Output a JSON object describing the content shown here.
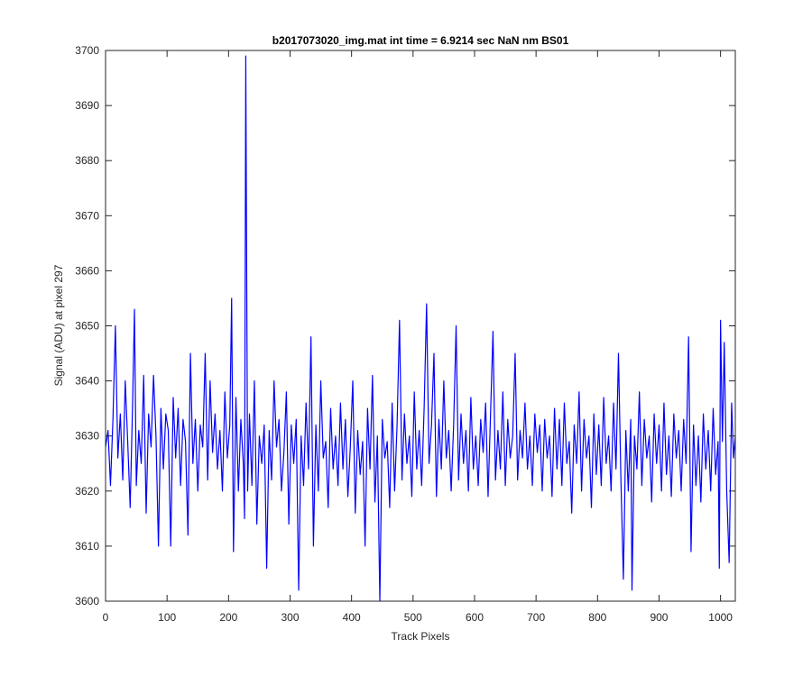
{
  "chart_data": {
    "type": "line",
    "title": "b2017073020_img.mat int time = 6.9214 sec  NaN nm BS01",
    "xlabel": "Track Pixels",
    "ylabel": "Signal (ADU) at pixel 297",
    "xlim": [
      0,
      1024
    ],
    "ylim": [
      3600,
      3700
    ],
    "xticks": [
      0,
      100,
      200,
      300,
      400,
      500,
      600,
      700,
      800,
      900,
      1000
    ],
    "yticks": [
      3600,
      3610,
      3620,
      3630,
      3640,
      3650,
      3660,
      3670,
      3680,
      3690,
      3700
    ],
    "grid": false,
    "legend": "none",
    "line_color": "#0000ff",
    "series": [
      {
        "points": [
          [
            0,
            3628
          ],
          [
            4,
            3631
          ],
          [
            8,
            3621
          ],
          [
            12,
            3633
          ],
          [
            16,
            3650
          ],
          [
            20,
            3626
          ],
          [
            24,
            3634
          ],
          [
            28,
            3622
          ],
          [
            32,
            3640
          ],
          [
            36,
            3629
          ],
          [
            40,
            3617
          ],
          [
            44,
            3636
          ],
          [
            47,
            3653
          ],
          [
            50,
            3621
          ],
          [
            54,
            3631
          ],
          [
            58,
            3625
          ],
          [
            62,
            3641
          ],
          [
            66,
            3616
          ],
          [
            70,
            3634
          ],
          [
            74,
            3628
          ],
          [
            78,
            3641
          ],
          [
            82,
            3630
          ],
          [
            86,
            3610
          ],
          [
            90,
            3635
          ],
          [
            94,
            3624
          ],
          [
            98,
            3634
          ],
          [
            102,
            3631
          ],
          [
            106,
            3610
          ],
          [
            110,
            3637
          ],
          [
            114,
            3626
          ],
          [
            118,
            3635
          ],
          [
            122,
            3621
          ],
          [
            126,
            3633
          ],
          [
            130,
            3629
          ],
          [
            134,
            3612
          ],
          [
            138,
            3645
          ],
          [
            142,
            3625
          ],
          [
            146,
            3633
          ],
          [
            150,
            3620
          ],
          [
            154,
            3632
          ],
          [
            158,
            3628
          ],
          [
            162,
            3645
          ],
          [
            166,
            3622
          ],
          [
            170,
            3640
          ],
          [
            174,
            3627
          ],
          [
            178,
            3634
          ],
          [
            182,
            3624
          ],
          [
            186,
            3631
          ],
          [
            190,
            3620
          ],
          [
            194,
            3638
          ],
          [
            198,
            3626
          ],
          [
            202,
            3632
          ],
          [
            205,
            3655
          ],
          [
            208,
            3609
          ],
          [
            212,
            3637
          ],
          [
            216,
            3620
          ],
          [
            220,
            3633
          ],
          [
            224,
            3625
          ],
          [
            226,
            3615
          ],
          [
            228,
            3699
          ],
          [
            231,
            3620
          ],
          [
            234,
            3634
          ],
          [
            238,
            3621
          ],
          [
            242,
            3640
          ],
          [
            246,
            3614
          ],
          [
            250,
            3630
          ],
          [
            254,
            3625
          ],
          [
            258,
            3632
          ],
          [
            262,
            3606
          ],
          [
            266,
            3631
          ],
          [
            270,
            3622
          ],
          [
            274,
            3640
          ],
          [
            278,
            3628
          ],
          [
            282,
            3633
          ],
          [
            286,
            3620
          ],
          [
            290,
            3627
          ],
          [
            294,
            3638
          ],
          [
            298,
            3614
          ],
          [
            302,
            3632
          ],
          [
            306,
            3625
          ],
          [
            310,
            3633
          ],
          [
            314,
            3602
          ],
          [
            318,
            3630
          ],
          [
            322,
            3621
          ],
          [
            326,
            3636
          ],
          [
            330,
            3624
          ],
          [
            334,
            3648
          ],
          [
            338,
            3610
          ],
          [
            342,
            3632
          ],
          [
            346,
            3620
          ],
          [
            350,
            3640
          ],
          [
            354,
            3626
          ],
          [
            358,
            3629
          ],
          [
            362,
            3617
          ],
          [
            366,
            3635
          ],
          [
            370,
            3624
          ],
          [
            374,
            3630
          ],
          [
            378,
            3621
          ],
          [
            382,
            3636
          ],
          [
            386,
            3624
          ],
          [
            390,
            3633
          ],
          [
            394,
            3619
          ],
          [
            398,
            3628
          ],
          [
            402,
            3640
          ],
          [
            406,
            3616
          ],
          [
            410,
            3631
          ],
          [
            414,
            3623
          ],
          [
            418,
            3629
          ],
          [
            422,
            3610
          ],
          [
            426,
            3635
          ],
          [
            430,
            3624
          ],
          [
            434,
            3641
          ],
          [
            438,
            3618
          ],
          [
            442,
            3630
          ],
          [
            446,
            3600
          ],
          [
            450,
            3633
          ],
          [
            454,
            3626
          ],
          [
            458,
            3629
          ],
          [
            462,
            3617
          ],
          [
            466,
            3636
          ],
          [
            470,
            3620
          ],
          [
            474,
            3632
          ],
          [
            478,
            3651
          ],
          [
            482,
            3622
          ],
          [
            486,
            3634
          ],
          [
            490,
            3625
          ],
          [
            494,
            3630
          ],
          [
            498,
            3619
          ],
          [
            502,
            3638
          ],
          [
            506,
            3624
          ],
          [
            510,
            3631
          ],
          [
            514,
            3621
          ],
          [
            518,
            3635
          ],
          [
            522,
            3654
          ],
          [
            526,
            3625
          ],
          [
            530,
            3632
          ],
          [
            534,
            3645
          ],
          [
            538,
            3619
          ],
          [
            542,
            3633
          ],
          [
            546,
            3624
          ],
          [
            550,
            3640
          ],
          [
            554,
            3626
          ],
          [
            558,
            3631
          ],
          [
            562,
            3620
          ],
          [
            566,
            3632
          ],
          [
            570,
            3650
          ],
          [
            574,
            3622
          ],
          [
            578,
            3634
          ],
          [
            582,
            3625
          ],
          [
            586,
            3631
          ],
          [
            590,
            3620
          ],
          [
            594,
            3637
          ],
          [
            598,
            3624
          ],
          [
            602,
            3630
          ],
          [
            606,
            3621
          ],
          [
            610,
            3633
          ],
          [
            614,
            3627
          ],
          [
            618,
            3636
          ],
          [
            622,
            3619
          ],
          [
            626,
            3634
          ],
          [
            630,
            3649
          ],
          [
            634,
            3622
          ],
          [
            638,
            3631
          ],
          [
            642,
            3624
          ],
          [
            646,
            3638
          ],
          [
            650,
            3621
          ],
          [
            654,
            3633
          ],
          [
            658,
            3626
          ],
          [
            662,
            3630
          ],
          [
            666,
            3645
          ],
          [
            670,
            3622
          ],
          [
            674,
            3631
          ],
          [
            678,
            3626
          ],
          [
            682,
            3636
          ],
          [
            686,
            3624
          ],
          [
            690,
            3630
          ],
          [
            694,
            3621
          ],
          [
            698,
            3634
          ],
          [
            702,
            3627
          ],
          [
            706,
            3632
          ],
          [
            710,
            3620
          ],
          [
            714,
            3633
          ],
          [
            718,
            3626
          ],
          [
            722,
            3630
          ],
          [
            726,
            3619
          ],
          [
            730,
            3635
          ],
          [
            734,
            3624
          ],
          [
            738,
            3633
          ],
          [
            742,
            3621
          ],
          [
            746,
            3636
          ],
          [
            750,
            3625
          ],
          [
            754,
            3629
          ],
          [
            758,
            3616
          ],
          [
            762,
            3632
          ],
          [
            766,
            3625
          ],
          [
            770,
            3638
          ],
          [
            774,
            3620
          ],
          [
            778,
            3633
          ],
          [
            782,
            3626
          ],
          [
            786,
            3630
          ],
          [
            790,
            3617
          ],
          [
            794,
            3634
          ],
          [
            798,
            3623
          ],
          [
            802,
            3632
          ],
          [
            806,
            3621
          ],
          [
            810,
            3637
          ],
          [
            814,
            3625
          ],
          [
            818,
            3630
          ],
          [
            822,
            3620
          ],
          [
            826,
            3636
          ],
          [
            830,
            3624
          ],
          [
            834,
            3645
          ],
          [
            838,
            3622
          ],
          [
            842,
            3604
          ],
          [
            846,
            3631
          ],
          [
            850,
            3620
          ],
          [
            854,
            3633
          ],
          [
            856,
            3602
          ],
          [
            860,
            3630
          ],
          [
            864,
            3624
          ],
          [
            868,
            3638
          ],
          [
            872,
            3621
          ],
          [
            876,
            3633
          ],
          [
            880,
            3626
          ],
          [
            884,
            3630
          ],
          [
            888,
            3618
          ],
          [
            892,
            3634
          ],
          [
            896,
            3625
          ],
          [
            900,
            3632
          ],
          [
            904,
            3620
          ],
          [
            908,
            3636
          ],
          [
            912,
            3623
          ],
          [
            916,
            3630
          ],
          [
            920,
            3619
          ],
          [
            924,
            3634
          ],
          [
            928,
            3626
          ],
          [
            932,
            3631
          ],
          [
            936,
            3620
          ],
          [
            940,
            3633
          ],
          [
            944,
            3625
          ],
          [
            948,
            3648
          ],
          [
            952,
            3609
          ],
          [
            956,
            3632
          ],
          [
            960,
            3621
          ],
          [
            964,
            3630
          ],
          [
            968,
            3618
          ],
          [
            972,
            3634
          ],
          [
            976,
            3624
          ],
          [
            980,
            3631
          ],
          [
            984,
            3620
          ],
          [
            988,
            3635
          ],
          [
            992,
            3623
          ],
          [
            996,
            3629
          ],
          [
            998,
            3606
          ],
          [
            1000,
            3651
          ],
          [
            1003,
            3629
          ],
          [
            1006,
            3647
          ],
          [
            1010,
            3620
          ],
          [
            1014,
            3607
          ],
          [
            1018,
            3636
          ],
          [
            1021,
            3626
          ],
          [
            1024,
            3630
          ]
        ]
      }
    ]
  }
}
